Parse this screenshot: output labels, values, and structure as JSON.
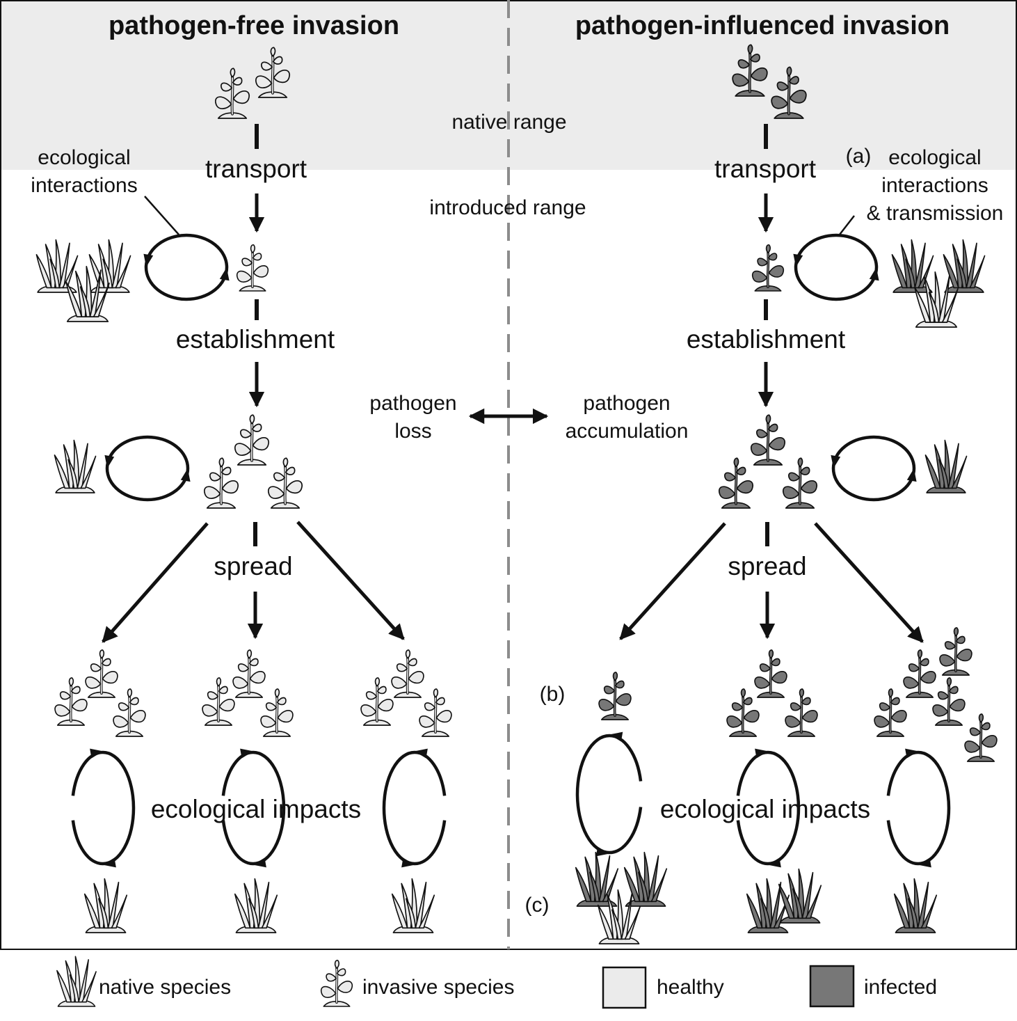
{
  "titles": {
    "left": "pathogen-free invasion",
    "right": "pathogen-influenced invasion"
  },
  "ranges": {
    "native": "native range",
    "introduced": "introduced range"
  },
  "stages": {
    "transport": "transport",
    "establishment": "establishment",
    "spread": "spread",
    "impacts": "ecological impacts"
  },
  "interactions": {
    "left_line1": "ecological",
    "left_line2": "interactions",
    "right_tag": "(a)",
    "right_line1": "ecological",
    "right_line2": "interactions",
    "right_line3": "& transmission"
  },
  "pathogen": {
    "loss_line1": "pathogen",
    "loss_line2": "loss",
    "accum_line1": "pathogen",
    "accum_line2": "accumulation"
  },
  "tags": {
    "b": "(b)",
    "c": "(c)"
  },
  "legend": {
    "native": "native species",
    "invasive": "invasive species",
    "healthy": "healthy",
    "infected": "infected"
  },
  "colors": {
    "healthy": "#ebebeb",
    "infected": "#777777",
    "native_range_band": "#ececec"
  }
}
